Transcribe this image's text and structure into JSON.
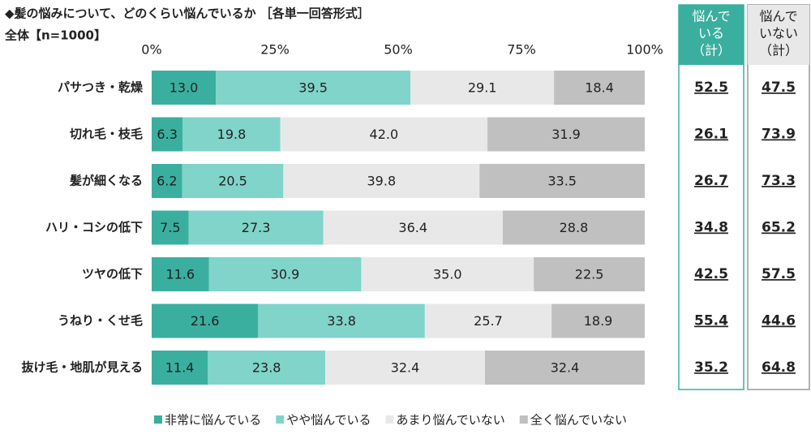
{
  "chart_data": {
    "type": "stacked-bar-horizontal",
    "title": "◆髪の悩みについて、どのくらい悩んでいるか ［各単一回答形式］",
    "subtitle": "全体【n=1000】",
    "categories": [
      "パサつき・乾燥",
      "切れ毛・枝毛",
      "髪が細くなる",
      "ハリ・コシの低下",
      "ツヤの低下",
      "うねり・くせ毛",
      "抜け毛・地肌が見える"
    ],
    "series": [
      {
        "name": "非常に悩んでいる",
        "color": "#3aaf9f",
        "values": [
          13.0,
          6.3,
          6.2,
          7.5,
          11.6,
          21.6,
          11.4
        ],
        "value_labels": [
          "13.0",
          "6.3",
          "6.2",
          "7.5",
          "11.6",
          "21.6",
          "11.4"
        ]
      },
      {
        "name": "やや悩んでいる",
        "color": "#80d4ca",
        "values": [
          39.5,
          19.8,
          20.5,
          27.3,
          30.9,
          33.8,
          23.8
        ],
        "value_labels": [
          "39.5",
          "19.8",
          "20.5",
          "27.3",
          "30.9",
          "33.8",
          "23.8"
        ]
      },
      {
        "name": "あまり悩んでいない",
        "color": "#e8e8e8",
        "values": [
          29.1,
          42.0,
          39.8,
          36.4,
          35.0,
          25.7,
          32.4
        ],
        "value_labels": [
          "29.1",
          "42.0",
          "39.8",
          "36.4",
          "35.0",
          "25.7",
          "32.4"
        ]
      },
      {
        "name": "全く悩んでいない",
        "color": "#c0c0c0",
        "values": [
          18.4,
          31.9,
          33.5,
          28.8,
          22.5,
          18.9,
          32.4
        ],
        "value_labels": [
          "18.4",
          "31.9",
          "33.5",
          "28.8",
          "22.5",
          "18.9",
          "32.4"
        ]
      }
    ],
    "xlim": [
      0,
      100
    ],
    "xticks": [
      {
        "value": 0,
        "label": "0%"
      },
      {
        "value": 25,
        "label": "25%"
      },
      {
        "value": 50,
        "label": "50%"
      },
      {
        "value": 75,
        "label": "75%"
      },
      {
        "value": 100,
        "label": "100%"
      }
    ],
    "summary": [
      {
        "header": [
          "悩んで",
          "いる",
          "（計）"
        ],
        "color": "#3aaf9f",
        "values": [
          52.5,
          26.1,
          26.7,
          34.8,
          42.5,
          55.4,
          35.2
        ]
      },
      {
        "header": [
          "悩んで",
          "いない",
          "（計）"
        ],
        "color": "#e8e8e8",
        "values": [
          47.5,
          73.9,
          73.3,
          65.2,
          57.5,
          44.6,
          64.8
        ]
      }
    ]
  }
}
